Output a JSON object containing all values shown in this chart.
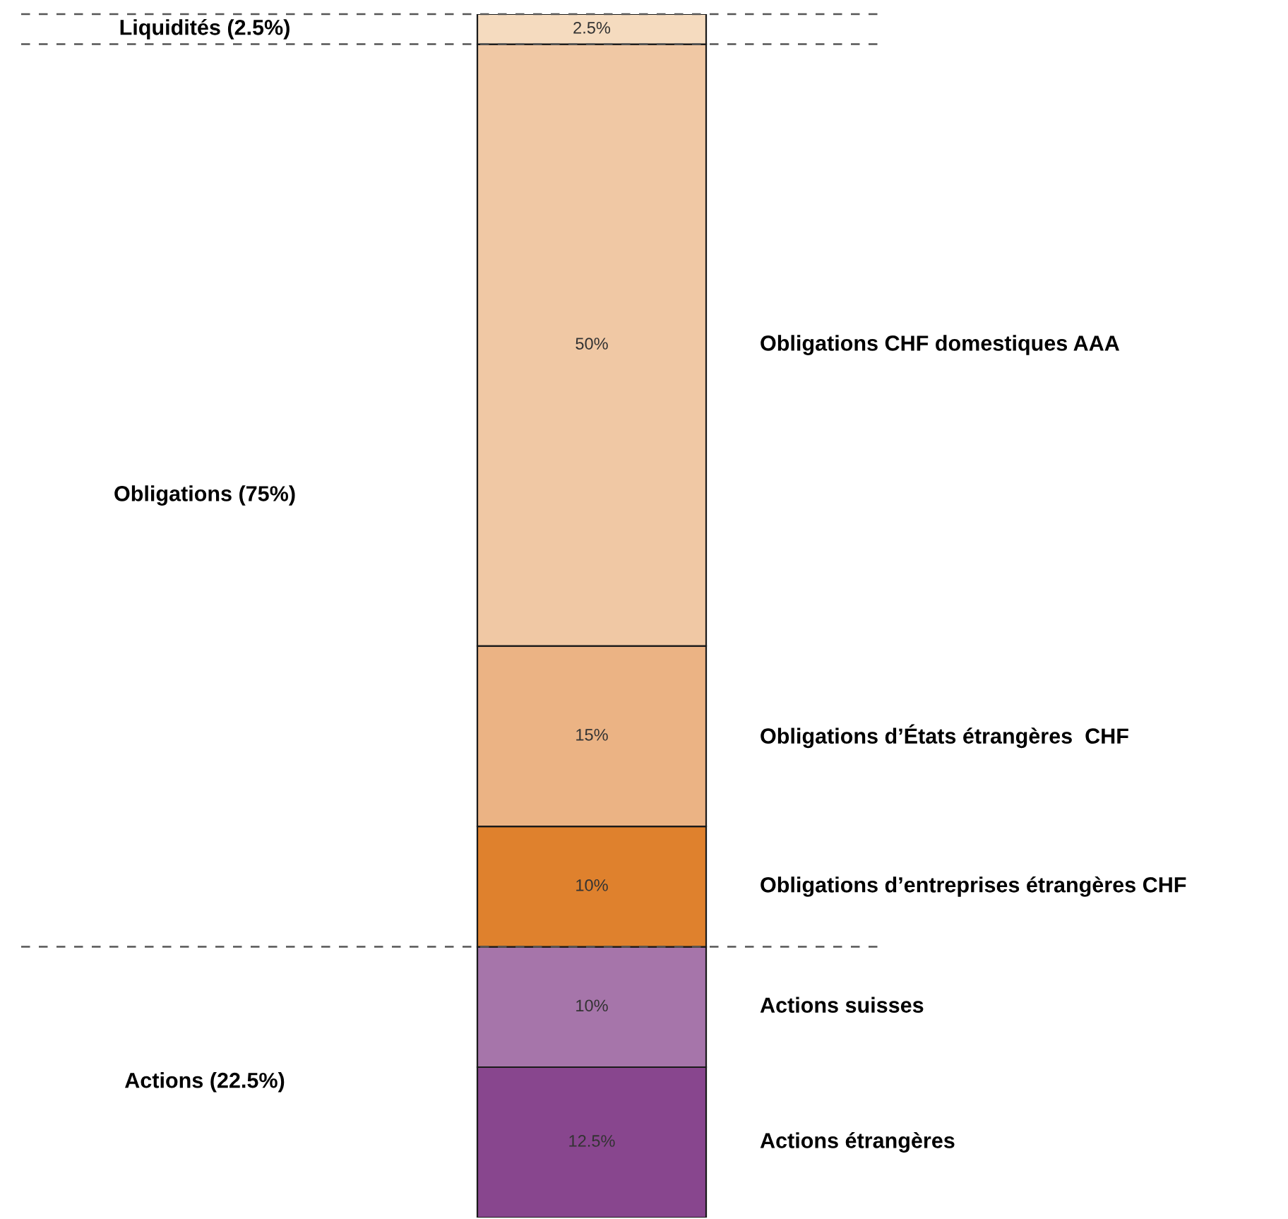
{
  "chart_data": {
    "type": "bar",
    "stacked": true,
    "categories": [
      null
    ],
    "ylim": [
      0,
      100
    ],
    "tick_labels": false,
    "series": [
      {
        "name": "Actions étrangères",
        "color": "#88468e",
        "values": [
          12.5
        ],
        "value_labels": [
          "12.5%"
        ]
      },
      {
        "name": "Actions suisses",
        "color": "#a675aa",
        "values": [
          10
        ],
        "value_labels": [
          "10%"
        ]
      },
      {
        "name": "Obligations d’entreprises étrangères CHF",
        "color": "#df812d",
        "values": [
          10
        ],
        "value_labels": [
          "10%"
        ]
      },
      {
        "name": "Obligations d’États étrangères  CHF",
        "color": "#ebb384",
        "values": [
          15
        ],
        "value_labels": [
          "15%"
        ]
      },
      {
        "name": "Obligations CHF domestiques AAA",
        "color": "#f0c8a4",
        "values": [
          50
        ],
        "value_labels": [
          "50%"
        ]
      },
      {
        "name": null,
        "color": "#f5dbbf",
        "values": [
          2.5
        ],
        "value_labels": [
          "2.5%"
        ]
      }
    ],
    "ref_lines": [
      {
        "axis": "y",
        "value": 100,
        "line_style": "dashed"
      },
      {
        "axis": "y",
        "value": 97.5,
        "line_style": "dashed"
      },
      {
        "axis": "y",
        "value": 22.5,
        "line_style": "dashed"
      }
    ],
    "annotations": [
      "Liquidités (2.5%)",
      "Obligations (75%)",
      "Actions (22.5%)"
    ]
  }
}
